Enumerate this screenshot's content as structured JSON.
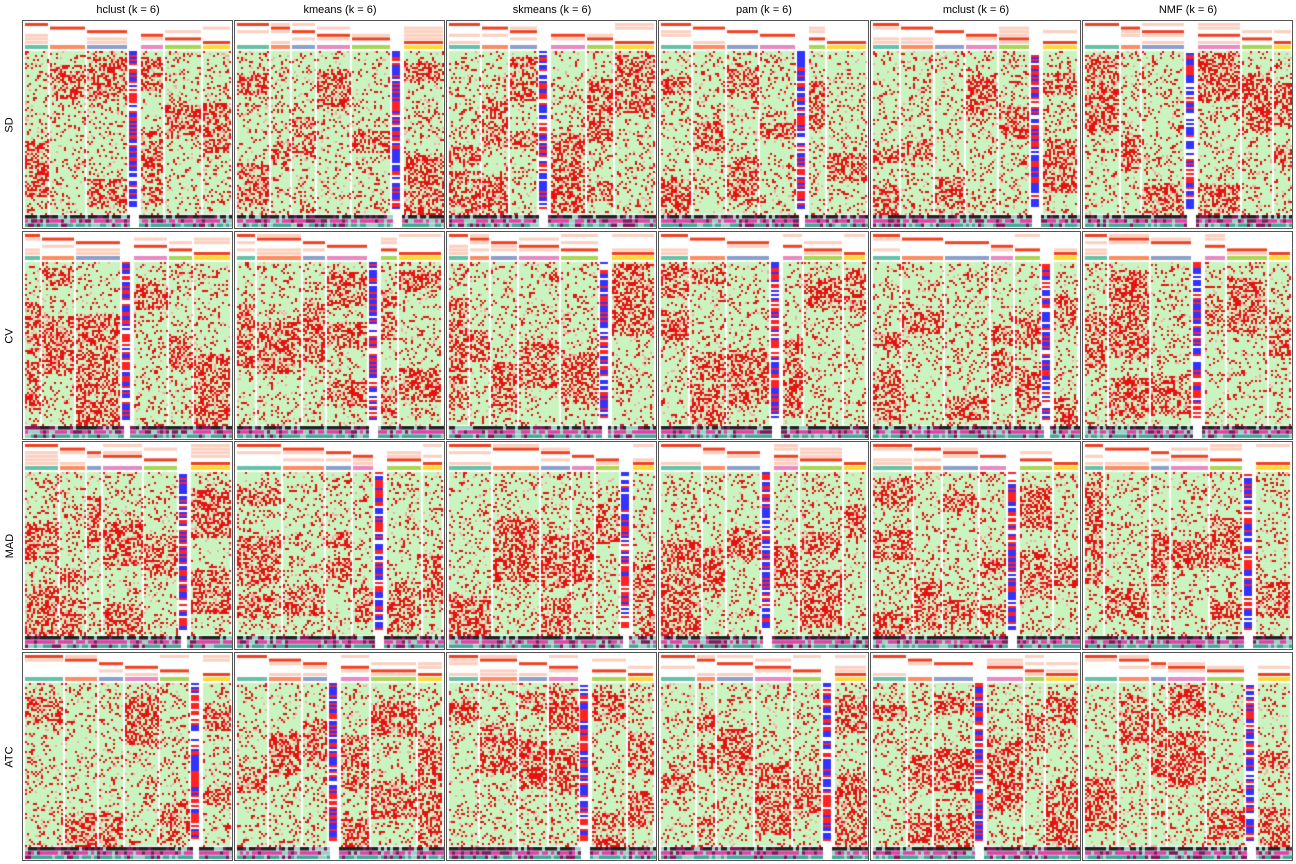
{
  "columns": [
    {
      "label": "hclust (k = 6)"
    },
    {
      "label": "kmeans (k = 6)"
    },
    {
      "label": "skmeans (k = 6)"
    },
    {
      "label": "pam (k = 6)"
    },
    {
      "label": "mclust (k = 6)"
    },
    {
      "label": "NMF (k = 6)"
    }
  ],
  "rows": [
    {
      "label": "SD"
    },
    {
      "label": "CV"
    },
    {
      "label": "MAD"
    },
    {
      "label": "ATC"
    }
  ],
  "colors": {
    "background_cell": "#c9f4c0",
    "high_cell": "#e81010",
    "class_colors": [
      "#66c2a5",
      "#fc8d62",
      "#8da0cb",
      "#e78ac3",
      "#a6d854",
      "#ffd92f"
    ],
    "annotation_pink": "#e040a8",
    "annotation_dark": "#222222",
    "annotation_teal": "#3fa896",
    "sd_bar_blue": "#3333ff",
    "sd_bar_red": "#ff2222"
  }
}
